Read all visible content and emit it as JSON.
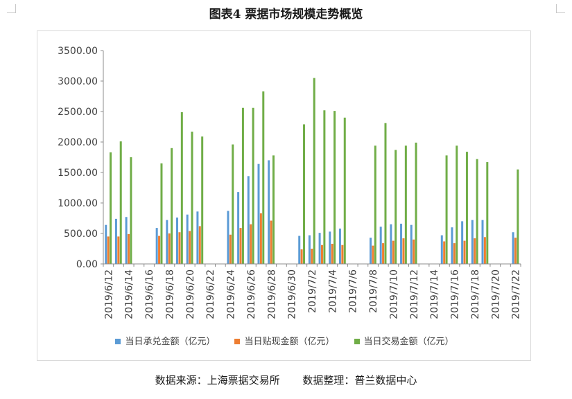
{
  "figure": {
    "title": "图表4 票据市场规模走势概览",
    "source_left": "数据来源：上海票据交易所",
    "source_right": "数据整理：普兰数据中心"
  },
  "colors": {
    "acceptance": "#5b9bd5",
    "discount": "#ed7d31",
    "transaction": "#70ad47"
  },
  "chart_data": {
    "type": "bar",
    "title": "",
    "xlabel": "",
    "ylabel": "",
    "ylim": [
      0,
      3500
    ],
    "yticks": [
      0,
      500,
      1000,
      1500,
      2000,
      2500,
      3000,
      3500
    ],
    "ytick_labels": [
      "0.00",
      "500.00",
      "1000.00",
      "1500.00",
      "2000.00",
      "2500.00",
      "3000.00",
      "3500.00"
    ],
    "grid": false,
    "legend": "bottom",
    "categories": [
      "2019/6/12",
      "2019/6/13",
      "2019/6/14",
      "2019/6/15",
      "2019/6/16",
      "2019/6/17",
      "2019/6/18",
      "2019/6/19",
      "2019/6/20",
      "2019/6/21",
      "2019/6/22",
      "2019/6/23",
      "2019/6/24",
      "2019/6/25",
      "2019/6/26",
      "2019/6/27",
      "2019/6/28",
      "2019/6/29",
      "2019/6/30",
      "2019/7/1",
      "2019/7/2",
      "2019/7/3",
      "2019/7/4",
      "2019/7/5",
      "2019/7/6",
      "2019/7/7",
      "2019/7/8",
      "2019/7/9",
      "2019/7/10",
      "2019/7/11",
      "2019/7/12",
      "2019/7/13",
      "2019/7/14",
      "2019/7/15",
      "2019/7/16",
      "2019/7/17",
      "2019/7/18",
      "2019/7/19",
      "2019/7/20",
      "2019/7/21",
      "2019/7/22"
    ],
    "tick_labels": [
      "2019/6/12",
      "2019/6/14",
      "2019/6/16",
      "2019/6/18",
      "2019/6/20",
      "2019/6/22",
      "2019/6/24",
      "2019/6/26",
      "2019/6/28",
      "2019/6/30",
      "2019/7/2",
      "2019/7/4",
      "2019/7/6",
      "2019/7/8",
      "2019/7/10",
      "2019/7/12",
      "2019/7/14",
      "2019/7/16",
      "2019/7/18",
      "2019/7/20",
      "2019/7/22"
    ],
    "series": [
      {
        "name": "当日承兑金额（亿元）",
        "values": [
          640,
          740,
          770,
          0,
          0,
          590,
          720,
          760,
          810,
          860,
          0,
          0,
          870,
          1180,
          1440,
          1640,
          1700,
          0,
          0,
          460,
          470,
          510,
          530,
          580,
          0,
          0,
          430,
          610,
          650,
          660,
          640,
          0,
          0,
          470,
          600,
          700,
          720,
          720,
          0,
          0,
          520
        ]
      },
      {
        "name": "当日贴现金额（亿元）",
        "values": [
          450,
          450,
          490,
          0,
          0,
          460,
          500,
          520,
          540,
          620,
          0,
          0,
          480,
          590,
          650,
          830,
          710,
          0,
          0,
          240,
          250,
          310,
          330,
          310,
          0,
          0,
          300,
          340,
          380,
          420,
          400,
          0,
          0,
          370,
          340,
          380,
          420,
          440,
          0,
          0,
          430
        ]
      },
      {
        "name": "当日交易金额（亿元）",
        "values": [
          1830,
          2010,
          1750,
          0,
          0,
          1650,
          1900,
          2490,
          2170,
          2090,
          0,
          0,
          1960,
          2560,
          2560,
          2830,
          1780,
          0,
          0,
          2290,
          3050,
          2520,
          2510,
          2400,
          0,
          0,
          1940,
          2310,
          1870,
          1940,
          1990,
          0,
          0,
          1780,
          1940,
          1840,
          1720,
          1670,
          0,
          0,
          1550
        ]
      }
    ]
  }
}
